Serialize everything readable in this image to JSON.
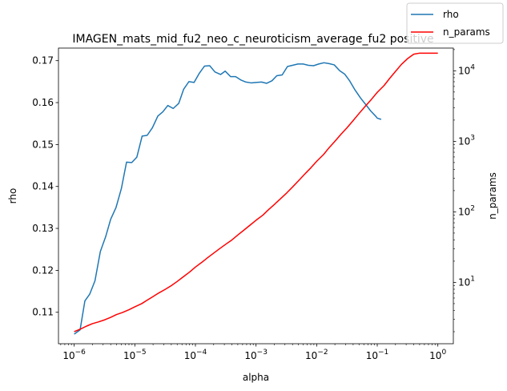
{
  "chart_data": {
    "type": "line",
    "title": "IMAGEN_mats_mid_fu2_neo_c_neuroticism_average_fu2 positive",
    "xlabel": "alpha",
    "ylabel": "rho",
    "y2label": "n_params",
    "x_scale": "log",
    "y2_scale": "log",
    "xlim": [
      5.5e-07,
      1.8
    ],
    "ylim": [
      0.1025,
      0.173
    ],
    "y2lim": [
      1.35,
      21000
    ],
    "xticks": [
      {
        "value": 1e-06,
        "base": "10",
        "exp": "−6"
      },
      {
        "value": 1e-05,
        "base": "10",
        "exp": "−5"
      },
      {
        "value": 0.0001,
        "base": "10",
        "exp": "−4"
      },
      {
        "value": 0.001,
        "base": "10",
        "exp": "−3"
      },
      {
        "value": 0.01,
        "base": "10",
        "exp": "−2"
      },
      {
        "value": 0.1,
        "base": "10",
        "exp": "−1"
      },
      {
        "value": 1,
        "base": "10",
        "exp": "0"
      }
    ],
    "yticks": [
      {
        "value": 0.11,
        "label": "0.11"
      },
      {
        "value": 0.12,
        "label": "0.12"
      },
      {
        "value": 0.13,
        "label": "0.13"
      },
      {
        "value": 0.14,
        "label": "0.14"
      },
      {
        "value": 0.15,
        "label": "0.15"
      },
      {
        "value": 0.16,
        "label": "0.16"
      },
      {
        "value": 0.17,
        "label": "0.17"
      }
    ],
    "y2ticks": [
      {
        "value": 10,
        "base": "10",
        "exp": "1"
      },
      {
        "value": 100,
        "base": "10",
        "exp": "2"
      },
      {
        "value": 1000,
        "base": "10",
        "exp": "3"
      },
      {
        "value": 10000,
        "base": "10",
        "exp": "4"
      }
    ],
    "legend_position": "upper-right",
    "series": [
      {
        "name": "rho",
        "color": "#1f77b4",
        "axis": "left",
        "points": [
          [
            1e-06,
            0.1048
          ],
          [
            1.25e-06,
            0.1058
          ],
          [
            1.5e-06,
            0.1127
          ],
          [
            1.8e-06,
            0.1143
          ],
          [
            2.2e-06,
            0.1175
          ],
          [
            2.7e-06,
            0.1245
          ],
          [
            3.3e-06,
            0.128
          ],
          [
            4e-06,
            0.1322
          ],
          [
            4.9e-06,
            0.135
          ],
          [
            6e-06,
            0.1395
          ],
          [
            7.3e-06,
            0.1458
          ],
          [
            8.9e-06,
            0.1457
          ],
          [
            1.08e-05,
            0.147
          ],
          [
            1.32e-05,
            0.152
          ],
          [
            1.6e-05,
            0.1522
          ],
          [
            1.95e-05,
            0.154
          ],
          [
            2.4e-05,
            0.1568
          ],
          [
            2.9e-05,
            0.1578
          ],
          [
            3.5e-05,
            0.1593
          ],
          [
            4.3e-05,
            0.1586
          ],
          [
            5.3e-05,
            0.1598
          ],
          [
            6.4e-05,
            0.1632
          ],
          [
            7.8e-05,
            0.165
          ],
          [
            9.5e-05,
            0.1648
          ],
          [
            0.000116,
            0.167
          ],
          [
            0.000141,
            0.1687
          ],
          [
            0.000172,
            0.1688
          ],
          [
            0.00021,
            0.1673
          ],
          [
            0.00026,
            0.1667
          ],
          [
            0.00031,
            0.1675
          ],
          [
            0.00038,
            0.1662
          ],
          [
            0.00046,
            0.1662
          ],
          [
            0.00056,
            0.1654
          ],
          [
            0.00068,
            0.1649
          ],
          [
            0.00083,
            0.1647
          ],
          [
            0.00101,
            0.1648
          ],
          [
            0.00123,
            0.1649
          ],
          [
            0.0015,
            0.1646
          ],
          [
            0.00183,
            0.1652
          ],
          [
            0.0022,
            0.1664
          ],
          [
            0.0027,
            0.1666
          ],
          [
            0.0033,
            0.1686
          ],
          [
            0.004,
            0.1689
          ],
          [
            0.0049,
            0.1692
          ],
          [
            0.006,
            0.1692
          ],
          [
            0.0073,
            0.1689
          ],
          [
            0.0089,
            0.1688
          ],
          [
            0.0108,
            0.1692
          ],
          [
            0.0132,
            0.1695
          ],
          [
            0.016,
            0.1693
          ],
          [
            0.0195,
            0.169
          ],
          [
            0.024,
            0.1676
          ],
          [
            0.029,
            0.1668
          ],
          [
            0.035,
            0.1652
          ],
          [
            0.043,
            0.163
          ],
          [
            0.053,
            0.1611
          ],
          [
            0.064,
            0.1596
          ],
          [
            0.078,
            0.158
          ],
          [
            0.095,
            0.1567
          ],
          [
            0.1,
            0.1563
          ],
          [
            0.116,
            0.156
          ]
        ]
      },
      {
        "name": "n_params",
        "color": "#ff0000",
        "axis": "right",
        "points": [
          [
            1e-06,
            2.0
          ],
          [
            1.3e-06,
            2.2
          ],
          [
            1.6e-06,
            2.4
          ],
          [
            2e-06,
            2.6
          ],
          [
            2.5e-06,
            2.75
          ],
          [
            3.2e-06,
            2.95
          ],
          [
            4e-06,
            3.2
          ],
          [
            5e-06,
            3.5
          ],
          [
            6.3e-06,
            3.75
          ],
          [
            8e-06,
            4.1
          ],
          [
            1e-05,
            4.5
          ],
          [
            1.3e-05,
            5.0
          ],
          [
            1.6e-05,
            5.6
          ],
          [
            2e-05,
            6.3
          ],
          [
            2.5e-05,
            7.1
          ],
          [
            3.2e-05,
            8.0
          ],
          [
            4e-05,
            9.0
          ],
          [
            5e-05,
            10.3
          ],
          [
            6.3e-05,
            12.0
          ],
          [
            8e-05,
            14.0
          ],
          [
            0.0001,
            16.5
          ],
          [
            0.00013,
            19.5
          ],
          [
            0.00016,
            22.5
          ],
          [
            0.0002,
            26.0
          ],
          [
            0.00025,
            30.0
          ],
          [
            0.00032,
            35.0
          ],
          [
            0.0004,
            40.0
          ],
          [
            0.0005,
            47.0
          ],
          [
            0.00063,
            55.0
          ],
          [
            0.0008,
            65.0
          ],
          [
            0.001,
            76.0
          ],
          [
            0.0013,
            90.0
          ],
          [
            0.0016,
            107.0
          ],
          [
            0.002,
            127.0
          ],
          [
            0.0025,
            152.0
          ],
          [
            0.0032,
            185.0
          ],
          [
            0.004,
            225.0
          ],
          [
            0.005,
            275.0
          ],
          [
            0.0063,
            340.0
          ],
          [
            0.008,
            420.0
          ],
          [
            0.01,
            520.0
          ],
          [
            0.013,
            650.0
          ],
          [
            0.016,
            810.0
          ],
          [
            0.02,
            1000.0
          ],
          [
            0.025,
            1250.0
          ],
          [
            0.032,
            1570.0
          ],
          [
            0.04,
            1970.0
          ],
          [
            0.05,
            2480.0
          ],
          [
            0.063,
            3120.0
          ],
          [
            0.08,
            3930.0
          ],
          [
            0.1,
            4950.0
          ],
          [
            0.13,
            6200.0
          ],
          [
            0.16,
            7800.0
          ],
          [
            0.2,
            9800.0
          ],
          [
            0.25,
            12300.0
          ],
          [
            0.32,
            15000.0
          ],
          [
            0.4,
            17200.0
          ],
          [
            0.5,
            17800.0
          ],
          [
            1.0,
            17800.0
          ]
        ]
      }
    ]
  }
}
